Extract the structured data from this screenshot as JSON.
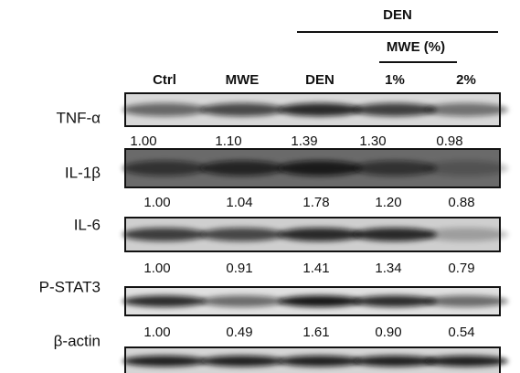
{
  "header": {
    "group": "DEN",
    "subgroup": "MWE (%)"
  },
  "lanes": [
    "Ctrl",
    "MWE",
    "DEN",
    "1%",
    "2%"
  ],
  "blots": [
    {
      "label": "TNF-α",
      "quant": [
        "1.00",
        "1.10",
        "1.39",
        "1.30",
        "0.98"
      ]
    },
    {
      "label": "IL-1β",
      "quant": [
        "1.00",
        "1.04",
        "1.78",
        "1.20",
        "0.88"
      ]
    },
    {
      "label": "IL-6",
      "quant": [
        "1.00",
        "0.91",
        "1.41",
        "1.34",
        "0.79"
      ]
    },
    {
      "label": "P-STAT3",
      "quant": [
        "1.00",
        "0.49",
        "1.61",
        "0.90",
        "0.54"
      ]
    },
    {
      "label": "β-actin"
    }
  ]
}
